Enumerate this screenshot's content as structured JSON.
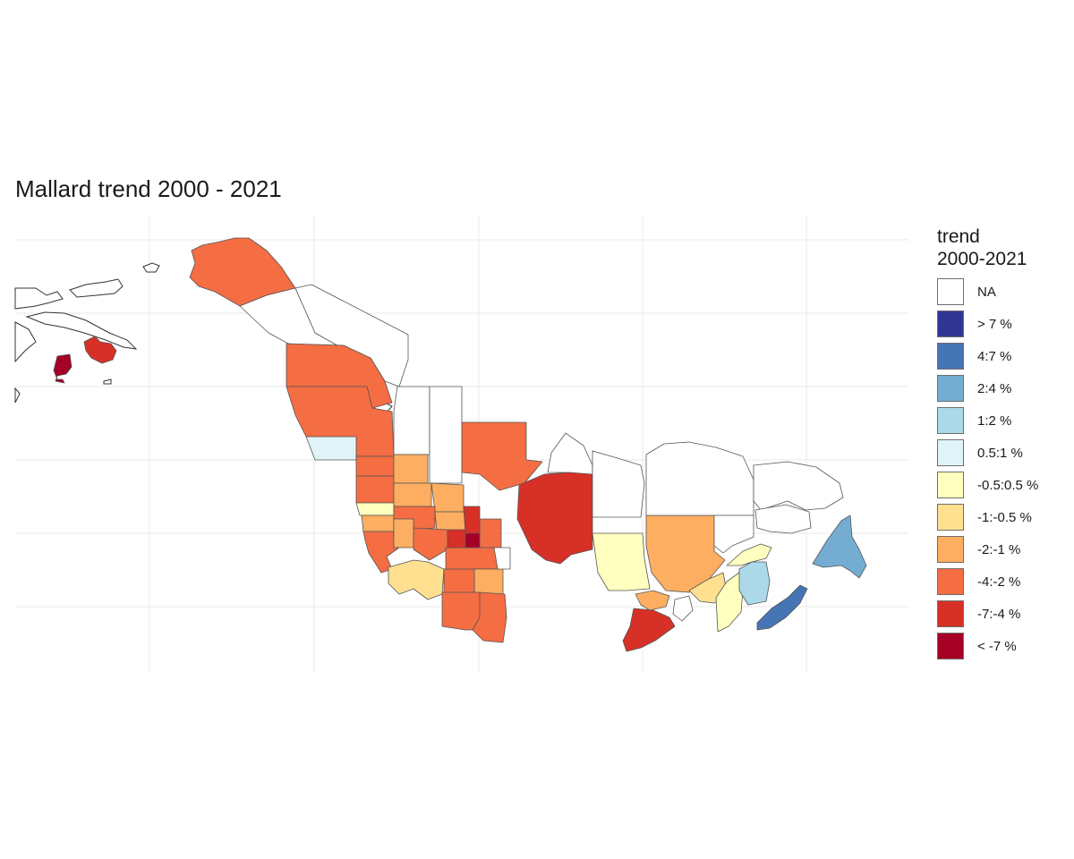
{
  "title": "Mallard trend 2000 - 2021",
  "legend": {
    "title_line1": "trend",
    "title_line2": "2000-2021",
    "items": [
      {
        "label": "NA",
        "color": "#ffffff"
      },
      {
        "label": "> 7 %",
        "color": "#313695"
      },
      {
        "label": "4:7 %",
        "color": "#4575b4"
      },
      {
        "label": "2:4 %",
        "color": "#74add1"
      },
      {
        "label": "1:2 %",
        "color": "#abd9e9"
      },
      {
        "label": "0.5:1 %",
        "color": "#e0f3f8"
      },
      {
        "label": "-0.5:0.5 %",
        "color": "#ffffbf"
      },
      {
        "label": "-1:-0.5 %",
        "color": "#fee090"
      },
      {
        "label": "-2:-1 %",
        "color": "#fdae61"
      },
      {
        "label": "-4:-2 %",
        "color": "#f46d43"
      },
      {
        "label": "-7:-4 %",
        "color": "#d73027"
      },
      {
        "label": "< -7 %",
        "color": "#a50026"
      }
    ]
  },
  "map": {
    "stroke_color": "#555555",
    "grid_color": "#e8e8e8",
    "regions": [
      {
        "name": "aleutian-west",
        "class": "< -7 %"
      },
      {
        "name": "alaska-peninsula",
        "class": "-7:-4 %"
      },
      {
        "name": "alaska-interior",
        "class": "-4:-2 %"
      },
      {
        "name": "yukon",
        "class": "NA"
      },
      {
        "name": "northwest-territories",
        "class": "NA"
      },
      {
        "name": "british-columbia-north",
        "class": "-4:-2 %"
      },
      {
        "name": "british-columbia-south",
        "class": "-4:-2 %"
      },
      {
        "name": "bc-coast",
        "class": "0.5:1 %"
      },
      {
        "name": "alberta-north",
        "class": "NA"
      },
      {
        "name": "saskatchewan-north",
        "class": "NA"
      },
      {
        "name": "manitoba-north",
        "class": "-4:-2 %"
      },
      {
        "name": "washington",
        "class": "-4:-2 %"
      },
      {
        "name": "oregon",
        "class": "-4:-2 %"
      },
      {
        "name": "california-north",
        "class": "-0.5:0.5 %"
      },
      {
        "name": "california-central",
        "class": "-2:-1 %"
      },
      {
        "name": "california-south",
        "class": "-4:-2 %"
      },
      {
        "name": "alberta-south",
        "class": "-2:-1 %"
      },
      {
        "name": "saskatchewan-south",
        "class": "-2:-1 %"
      },
      {
        "name": "montana",
        "class": "-2:-1 %"
      },
      {
        "name": "idaho",
        "class": "-4:-2 %"
      },
      {
        "name": "nevada",
        "class": "-2:-1 %"
      },
      {
        "name": "utah",
        "class": "-2:-1 %"
      },
      {
        "name": "wyoming",
        "class": "-4:-2 %"
      },
      {
        "name": "colorado",
        "class": "-4:-2 %"
      },
      {
        "name": "dakotas",
        "class": "-7:-4 %"
      },
      {
        "name": "nebraska",
        "class": "-7:-4 %"
      },
      {
        "name": "kansas",
        "class": "< -7 %"
      },
      {
        "name": "new-mexico-west",
        "class": "-1:-0.5 %"
      },
      {
        "name": "texas-west",
        "class": "-4:-2 %"
      },
      {
        "name": "oklahoma",
        "class": "-2:-1 %"
      },
      {
        "name": "texas-south",
        "class": "-4:-2 %"
      },
      {
        "name": "minnesota",
        "class": "-4:-2 %"
      },
      {
        "name": "iowa",
        "class": "-4:-2 %"
      },
      {
        "name": "ontario-north",
        "class": "-7:-4 %"
      },
      {
        "name": "quebec-north",
        "class": "NA"
      },
      {
        "name": "labrador",
        "class": "NA"
      },
      {
        "name": "ontario-central",
        "class": "-0.5:0.5 %"
      },
      {
        "name": "quebec-south",
        "class": "-2:-1 %"
      },
      {
        "name": "ontario-south",
        "class": "-7:-4 %"
      },
      {
        "name": "michigan",
        "class": "-2:-1 %"
      },
      {
        "name": "new-york",
        "class": "-1:-0.5 %"
      },
      {
        "name": "maine",
        "class": "-0.5:0.5 %"
      },
      {
        "name": "gaspe",
        "class": "-0.5:0.5 %"
      },
      {
        "name": "new-brunswick",
        "class": "1:2 %"
      },
      {
        "name": "nova-scotia",
        "class": "4:7 %"
      },
      {
        "name": "newfoundland",
        "class": "2:4 %"
      },
      {
        "name": "quebec-east",
        "class": "NA"
      }
    ]
  }
}
